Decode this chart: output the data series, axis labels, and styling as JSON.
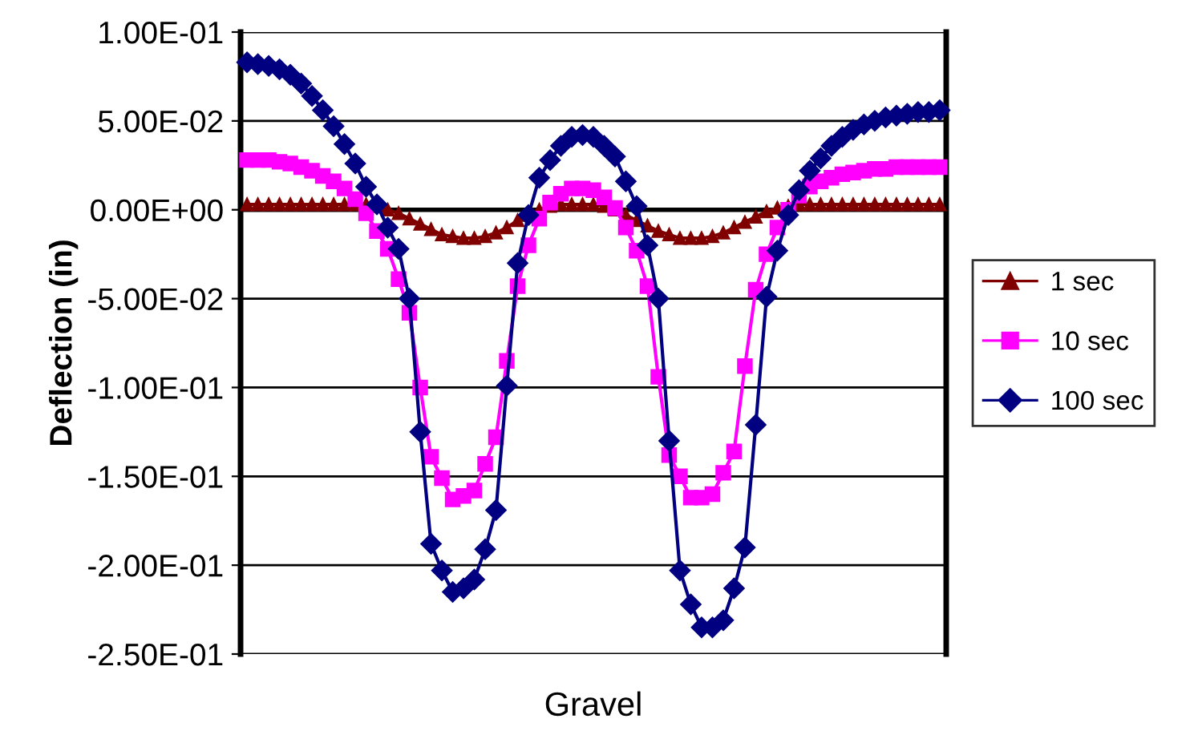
{
  "chart_data": {
    "type": "line",
    "xlabel": "Gravel",
    "ylabel": "Deflection (in)",
    "categories": [
      null,
      null,
      null,
      null,
      null,
      null,
      null,
      null,
      null,
      null,
      null,
      null,
      null,
      null,
      null,
      null,
      null,
      null,
      null,
      null,
      null,
      null,
      null,
      null,
      null,
      null,
      null,
      null,
      null,
      null,
      null,
      null,
      null,
      null,
      null,
      null,
      null,
      null,
      null,
      null,
      null,
      null,
      null,
      null,
      null,
      null,
      null,
      null,
      null,
      null,
      null,
      null,
      null,
      null,
      null,
      null,
      null,
      null,
      null,
      null,
      null,
      null,
      null,
      null,
      null
    ],
    "ylim": [
      -0.25,
      0.1
    ],
    "yticks": [
      {
        "value": 0.1,
        "label": "1.00E-01"
      },
      {
        "value": 0.05,
        "label": "5.00E-02"
      },
      {
        "value": 0,
        "label": "0.00E+00"
      },
      {
        "value": -0.05,
        "label": "-5.00E-02"
      },
      {
        "value": -0.1,
        "label": "-1.00E-01"
      },
      {
        "value": -0.15,
        "label": "-1.50E-01"
      },
      {
        "value": -0.2,
        "label": "-2.00E-01"
      },
      {
        "value": -0.25,
        "label": "-2.50E-01"
      }
    ],
    "grid": "y",
    "legend": "right",
    "line_style": "solid",
    "series": [
      {
        "name": "1 sec",
        "color": "#800000",
        "marker": "triangle",
        "values": [
          0.003,
          0.003,
          0.003,
          0.003,
          0.003,
          0.003,
          0.003,
          0.003,
          0.003,
          0.003,
          0.003,
          0.003,
          0.002,
          0.0,
          -0.002,
          -0.005,
          -0.008,
          -0.011,
          -0.014,
          -0.015,
          -0.016,
          -0.016,
          -0.015,
          -0.013,
          -0.01,
          -0.006,
          -0.003,
          0.0,
          0.002,
          0.003,
          0.003,
          0.003,
          0.003,
          0.002,
          0.0,
          -0.003,
          -0.006,
          -0.009,
          -0.012,
          -0.014,
          -0.016,
          -0.016,
          -0.016,
          -0.015,
          -0.013,
          -0.01,
          -0.007,
          -0.004,
          -0.001,
          0.001,
          0.002,
          0.003,
          0.003,
          0.003,
          0.003,
          0.003,
          0.003,
          0.003,
          0.003,
          0.003,
          0.003,
          0.003,
          0.003,
          0.003,
          0.003
        ]
      },
      {
        "name": "10 sec",
        "color": "#ff00ff",
        "marker": "square",
        "values": [
          0.028,
          0.028,
          0.028,
          0.027,
          0.026,
          0.024,
          0.022,
          0.019,
          0.016,
          0.012,
          0.006,
          -0.002,
          -0.012,
          -0.022,
          -0.039,
          -0.058,
          -0.1,
          -0.139,
          -0.151,
          -0.163,
          -0.161,
          -0.158,
          -0.143,
          -0.128,
          -0.085,
          -0.043,
          -0.02,
          -0.005,
          0.004,
          0.009,
          0.012,
          0.012,
          0.011,
          0.007,
          0.001,
          -0.01,
          -0.023,
          -0.043,
          -0.094,
          -0.138,
          -0.15,
          -0.162,
          -0.162,
          -0.16,
          -0.148,
          -0.136,
          -0.088,
          -0.045,
          -0.025,
          -0.01,
          0.0,
          0.008,
          0.013,
          0.016,
          0.018,
          0.02,
          0.021,
          0.022,
          0.023,
          0.023,
          0.024,
          0.024,
          0.024,
          0.024,
          0.024
        ]
      },
      {
        "name": "100 sec",
        "color": "#000080",
        "marker": "diamond",
        "values": [
          0.083,
          0.082,
          0.081,
          0.079,
          0.076,
          0.071,
          0.064,
          0.056,
          0.047,
          0.037,
          0.026,
          0.013,
          0.003,
          -0.01,
          -0.022,
          -0.05,
          -0.125,
          -0.188,
          -0.203,
          -0.215,
          -0.213,
          -0.208,
          -0.191,
          -0.169,
          -0.099,
          -0.03,
          -0.003,
          0.018,
          0.028,
          0.036,
          0.041,
          0.042,
          0.041,
          0.036,
          0.03,
          0.016,
          0.002,
          -0.02,
          -0.05,
          -0.13,
          -0.203,
          -0.222,
          -0.235,
          -0.235,
          -0.231,
          -0.213,
          -0.19,
          -0.121,
          -0.049,
          -0.023,
          -0.003,
          0.011,
          0.022,
          0.029,
          0.036,
          0.041,
          0.045,
          0.048,
          0.05,
          0.052,
          0.053,
          0.054,
          0.055,
          0.055,
          0.056
        ]
      }
    ]
  }
}
